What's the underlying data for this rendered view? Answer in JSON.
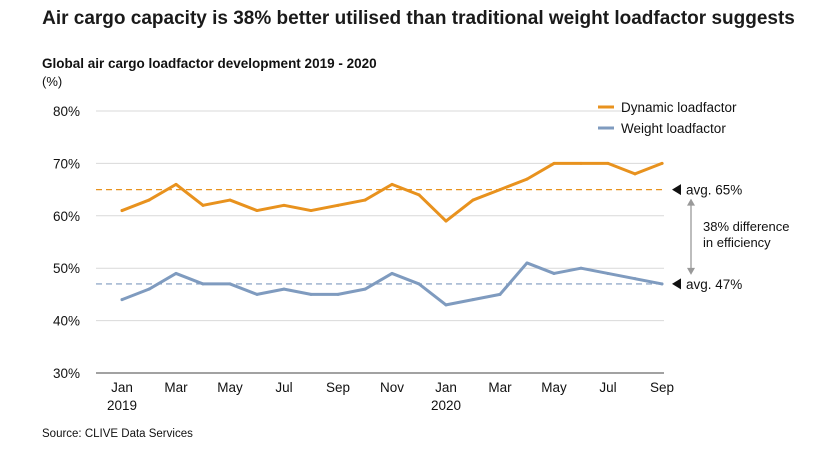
{
  "title": "Air cargo capacity is 38% better utilised than traditional weight loadfactor suggests",
  "chart_data": {
    "type": "line",
    "title": "Global air cargo loadfactor development 2019 - 2020",
    "unit_label": "(%)",
    "x_tick_labels": [
      "Jan",
      "Mar",
      "May",
      "Jul",
      "Sep",
      "Nov",
      "Jan",
      "Mar",
      "May",
      "Jul",
      "Sep"
    ],
    "x_year_labels": [
      {
        "index": 0,
        "label": "2019"
      },
      {
        "index": 12,
        "label": "2020"
      }
    ],
    "y_tick_labels": [
      "80%",
      "70%",
      "60%",
      "50%",
      "40%",
      "30%"
    ],
    "ylim": [
      30,
      80
    ],
    "grid": true,
    "legend_position": "top-right",
    "series": [
      {
        "name": "Dynamic loadfactor",
        "color": "#E8921E",
        "values": [
          61,
          63,
          66,
          62,
          63,
          61,
          62,
          61,
          62,
          63,
          66,
          64,
          59,
          63,
          65,
          67,
          70,
          70,
          70,
          68,
          70
        ]
      },
      {
        "name": "Weight loadfactor",
        "color": "#7F9BBF",
        "values": [
          44,
          46,
          49,
          47,
          47,
          45,
          46,
          45,
          45,
          46,
          49,
          47,
          43,
          44,
          45,
          51,
          49,
          50,
          49,
          48,
          47
        ]
      }
    ],
    "averages": [
      {
        "series": "Dynamic loadfactor",
        "value": 65,
        "label": "avg.  65%",
        "color": "#E8921E"
      },
      {
        "series": "Weight loadfactor",
        "value": 47,
        "label": "avg. 47%",
        "color": "#7F9BBF"
      }
    ],
    "annotation": [
      "38% difference",
      "in efficiency"
    ],
    "annotation_color": "#999999"
  },
  "source": "Source: CLIVE Data Services"
}
